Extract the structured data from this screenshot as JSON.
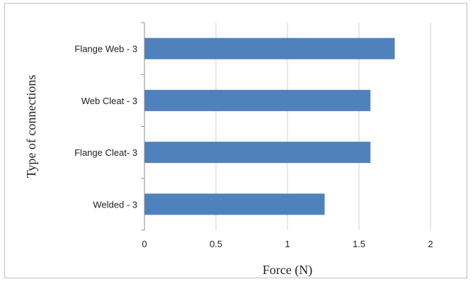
{
  "chart_data": {
    "type": "bar",
    "orientation": "horizontal",
    "categories": [
      "Flange Web - 3",
      "Web Cleat - 3",
      "Flange Cleat- 3",
      "Welded - 3"
    ],
    "values": [
      1.75,
      1.58,
      1.58,
      1.26
    ],
    "xlabel": "Force (N)",
    "ylabel": "Type of connections",
    "xlim": [
      0,
      2
    ],
    "xticks": [
      "0",
      "0.5",
      "1",
      "1.5",
      "2"
    ],
    "grid": true,
    "legend": "none",
    "colors": {
      "bar": "#4f81bd",
      "grid": "#d0d0d0",
      "axis": "#8c8c8c"
    }
  }
}
